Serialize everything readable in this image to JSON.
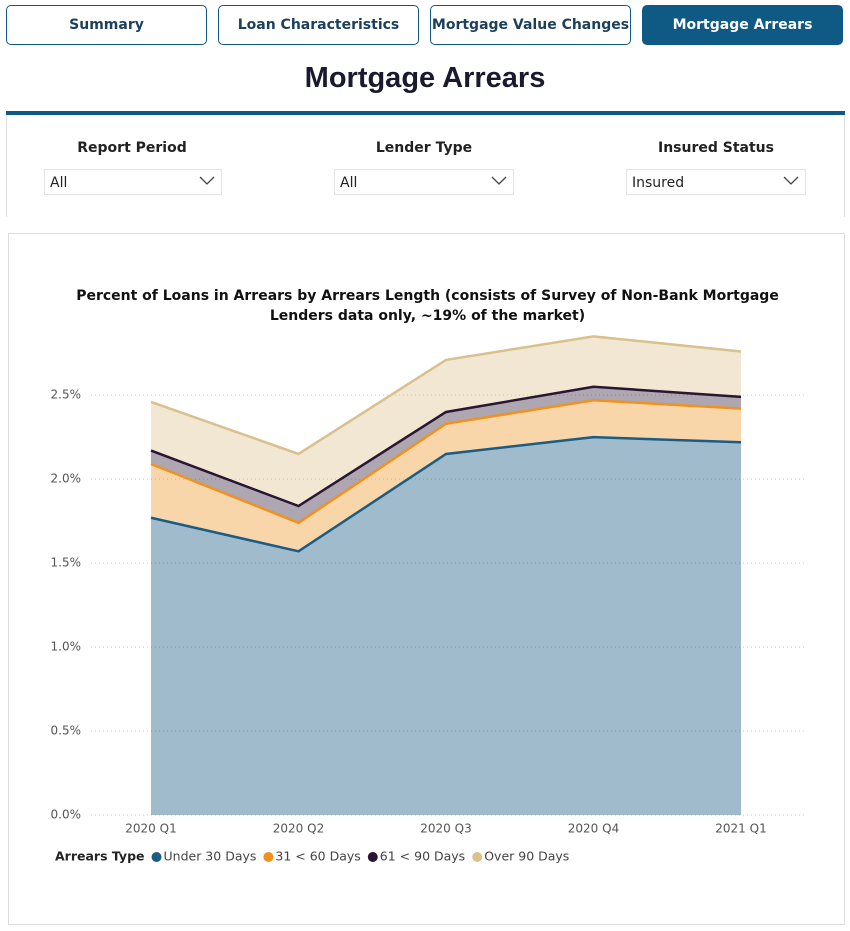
{
  "tabs": [
    {
      "label": "Summary"
    },
    {
      "label": "Loan Characteristics"
    },
    {
      "label": "Mortgage Value Changes"
    },
    {
      "label": "Mortgage Arrears",
      "active": true
    }
  ],
  "header": {
    "title": "Mortgage Arrears"
  },
  "filters": [
    {
      "label": "Report Period",
      "value": "All"
    },
    {
      "label": "Lender Type",
      "value": "All"
    },
    {
      "label": "Insured Status",
      "value": "Insured"
    }
  ],
  "chart_data": {
    "type": "stacked_area",
    "title": "Percent of Loans in Arrears by Arrears Length (consists of Survey of Non-Bank Mortgage Lenders data only, ~19% of the market)",
    "categories": [
      "2020 Q1",
      "2020 Q2",
      "2020 Q3",
      "2020 Q4",
      "2021 Q1"
    ],
    "series": [
      {
        "name": "Under 30 Days",
        "color": "#1a5c85",
        "values": [
          1.77,
          1.57,
          2.15,
          2.25,
          2.22
        ]
      },
      {
        "name": "31 < 60 Days",
        "color": "#f0921e",
        "values": [
          0.32,
          0.17,
          0.18,
          0.22,
          0.2
        ]
      },
      {
        "name": "61 < 90 Days",
        "color": "#2a1533",
        "values": [
          0.08,
          0.1,
          0.07,
          0.08,
          0.07
        ]
      },
      {
        "name": "Over 90 Days",
        "color": "#d9c08c",
        "values": [
          0.29,
          0.31,
          0.31,
          0.3,
          0.27
        ]
      }
    ],
    "legend_title": "Arrears Type",
    "ylim": [
      0,
      2.9
    ],
    "yticks": [
      {
        "value": 0,
        "label": "0.0%"
      },
      {
        "value": 0.5,
        "label": "0.5%"
      },
      {
        "value": 1,
        "label": "1.0%"
      },
      {
        "value": 1.5,
        "label": "1.5%"
      },
      {
        "value": 2,
        "label": "2.0%"
      },
      {
        "value": 2.5,
        "label": "2.5%"
      }
    ],
    "grid": true
  }
}
